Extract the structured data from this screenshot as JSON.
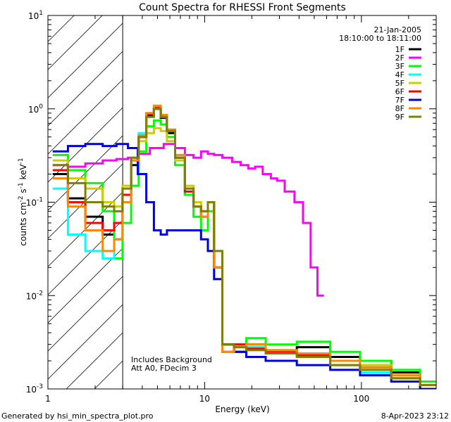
{
  "chart_data": {
    "type": "line",
    "title": "Count Spectra for RHESSI Front Segments",
    "xlabel": "Energy (keV)",
    "ylabel": "counts cm^-2 s^-1 keV^-1",
    "xscale": "log",
    "yscale": "log",
    "xlim": [
      1,
      300
    ],
    "ylim": [
      0.001,
      10
    ],
    "x_tick_labels": [
      {
        "value": 1,
        "label": "1"
      },
      {
        "value": 10,
        "label": "10"
      },
      {
        "value": 100,
        "label": "100"
      }
    ],
    "y_tick_labels": [
      {
        "value": 10,
        "base": "10",
        "exp": "1"
      },
      {
        "value": 1,
        "base": "10",
        "exp": "0"
      },
      {
        "value": 0.1,
        "base": "10",
        "exp": "-1"
      },
      {
        "value": 0.01,
        "base": "10",
        "exp": "-2"
      },
      {
        "value": 0.001,
        "base": "10",
        "exp": "-3"
      }
    ],
    "excluded_region": [
      1,
      3
    ],
    "legend": {
      "date": "21-Jan-2005",
      "time_range": "18:10:00 to 18:11:00"
    },
    "annotations": [
      "Includes Background",
      "Att A0, FDecim 3"
    ],
    "series": [
      {
        "name": "1F",
        "color": "#000000",
        "x": [
          1.2,
          1.5,
          2,
          2.5,
          2.8,
          3.2,
          3.6,
          4,
          4.5,
          5,
          5.5,
          6,
          7,
          8,
          9,
          10,
          11,
          12,
          14,
          17,
          20,
          30,
          50,
          80,
          120,
          200,
          280
        ],
        "values": [
          0.2,
          0.11,
          0.07,
          0.045,
          0.04,
          0.1,
          0.25,
          0.5,
          0.85,
          1.0,
          0.8,
          0.55,
          0.3,
          0.12,
          0.09,
          0.08,
          0.1,
          0.02,
          0.003,
          0.0025,
          0.003,
          0.0025,
          0.0028,
          0.0022,
          0.002,
          0.0015,
          0.0012
        ]
      },
      {
        "name": "2F",
        "color": "#ff00ff",
        "x": [
          1.2,
          1.5,
          2,
          2.5,
          3,
          3.5,
          4,
          5,
          6,
          7,
          8,
          9,
          10,
          11,
          12,
          14,
          16,
          18,
          20,
          22,
          25,
          28,
          30,
          35,
          40,
          45,
          50,
          55
        ],
        "values": [
          0.25,
          0.24,
          0.26,
          0.28,
          0.29,
          0.3,
          0.33,
          0.38,
          0.42,
          0.38,
          0.32,
          0.3,
          0.35,
          0.33,
          0.32,
          0.3,
          0.27,
          0.25,
          0.23,
          0.24,
          0.2,
          0.18,
          0.17,
          0.13,
          0.1,
          0.06,
          0.02,
          0.01
        ]
      },
      {
        "name": "3F",
        "color": "#00ff00",
        "x": [
          1.2,
          1.5,
          2,
          2.5,
          2.8,
          3.2,
          3.6,
          4,
          4.5,
          5,
          5.5,
          6,
          7,
          8,
          9,
          10,
          11,
          12,
          14,
          17,
          20,
          30,
          50,
          80,
          120,
          200,
          280
        ],
        "values": [
          0.32,
          0.22,
          0.16,
          0.08,
          0.025,
          0.06,
          0.15,
          0.35,
          0.65,
          0.75,
          0.68,
          0.5,
          0.25,
          0.12,
          0.07,
          0.05,
          0.08,
          0.02,
          0.003,
          0.003,
          0.0035,
          0.003,
          0.0032,
          0.0025,
          0.002,
          0.0016,
          0.0012
        ]
      },
      {
        "name": "4F",
        "color": "#00ffff",
        "x": [
          1.2,
          1.5,
          2,
          2.5,
          2.8,
          3.2,
          3.6,
          4,
          4.5,
          5,
          5.5,
          6,
          7,
          8,
          9,
          10,
          11,
          12,
          14,
          17,
          20,
          30,
          50,
          80,
          120,
          200,
          280
        ],
        "values": [
          0.14,
          0.045,
          0.03,
          0.025,
          0.04,
          0.12,
          0.3,
          0.55,
          0.9,
          1.05,
          0.85,
          0.6,
          0.32,
          0.13,
          0.09,
          0.07,
          0.1,
          0.02,
          0.003,
          0.003,
          0.0028,
          0.0025,
          0.0022,
          0.0018,
          0.0015,
          0.0013,
          0.001
        ]
      },
      {
        "name": "5F",
        "color": "#cccc00",
        "x": [
          1.2,
          1.5,
          2,
          2.5,
          2.8,
          3.2,
          3.6,
          4,
          4.5,
          5,
          5.5,
          6,
          7,
          8,
          9,
          10,
          11,
          12,
          14,
          17,
          20,
          30,
          50,
          80,
          120,
          200,
          280
        ],
        "values": [
          0.28,
          0.18,
          0.14,
          0.1,
          0.09,
          0.15,
          0.3,
          0.45,
          0.55,
          0.62,
          0.58,
          0.45,
          0.28,
          0.15,
          0.1,
          0.08,
          0.1,
          0.03,
          0.003,
          0.0028,
          0.003,
          0.0026,
          0.0024,
          0.002,
          0.0018,
          0.0014,
          0.0011
        ]
      },
      {
        "name": "6F",
        "color": "#ff0000",
        "x": [
          1.2,
          1.5,
          2,
          2.5,
          2.8,
          3.2,
          3.6,
          4,
          4.5,
          5,
          5.5,
          6,
          7,
          8,
          9,
          10,
          11,
          12,
          14,
          17,
          20,
          30,
          50,
          80,
          120,
          200,
          280
        ],
        "values": [
          0.22,
          0.1,
          0.06,
          0.05,
          0.06,
          0.12,
          0.28,
          0.5,
          0.88,
          1.02,
          0.82,
          0.58,
          0.3,
          0.13,
          0.09,
          0.07,
          0.1,
          0.02,
          0.0025,
          0.003,
          0.0027,
          0.0025,
          0.0023,
          0.002,
          0.0017,
          0.0013,
          0.001
        ]
      },
      {
        "name": "7F",
        "color": "#0000dd",
        "x": [
          1.2,
          1.5,
          2,
          2.5,
          3,
          3.5,
          4,
          4.5,
          5,
          5.5,
          6,
          7,
          8,
          9,
          10,
          11,
          12,
          14,
          17,
          20,
          30,
          50,
          80,
          120,
          200,
          280
        ],
        "values": [
          0.35,
          0.4,
          0.42,
          0.4,
          0.42,
          0.38,
          0.2,
          0.1,
          0.05,
          0.045,
          0.05,
          0.05,
          0.05,
          0.05,
          0.04,
          0.03,
          0.015,
          0.003,
          0.0025,
          0.0022,
          0.002,
          0.0018,
          0.0016,
          0.0014,
          0.0012,
          0.001
        ]
      },
      {
        "name": "8F",
        "color": "#ff8800",
        "x": [
          1.2,
          1.5,
          2,
          2.5,
          2.8,
          3.2,
          3.6,
          4,
          4.5,
          5,
          5.5,
          6,
          7,
          8,
          9,
          10,
          11,
          12,
          14,
          17,
          20,
          30,
          50,
          80,
          120,
          200,
          280
        ],
        "values": [
          0.18,
          0.09,
          0.05,
          0.03,
          0.04,
          0.1,
          0.28,
          0.52,
          0.9,
          1.08,
          0.86,
          0.6,
          0.32,
          0.14,
          0.09,
          0.07,
          0.1,
          0.02,
          0.0025,
          0.0028,
          0.003,
          0.0026,
          0.0024,
          0.002,
          0.0017,
          0.0014,
          0.0011
        ]
      },
      {
        "name": "9F",
        "color": "#808000",
        "x": [
          1.2,
          1.5,
          2,
          2.5,
          2.8,
          3.2,
          3.6,
          4,
          4.5,
          5,
          5.5,
          6,
          7,
          8,
          9,
          10,
          11,
          12,
          14,
          17,
          20,
          30,
          50,
          80,
          120,
          200,
          280
        ],
        "values": [
          0.25,
          0.16,
          0.1,
          0.09,
          0.08,
          0.14,
          0.3,
          0.5,
          0.82,
          1.0,
          0.82,
          0.58,
          0.3,
          0.14,
          0.09,
          0.08,
          0.1,
          0.03,
          0.003,
          0.0028,
          0.0026,
          0.0024,
          0.0022,
          0.0018,
          0.0016,
          0.0013,
          0.0011
        ]
      }
    ]
  },
  "footer": {
    "generator": "Generated by hsi_min_spectra_plot.pro",
    "timestamp": "8-Apr-2023 23:12"
  }
}
